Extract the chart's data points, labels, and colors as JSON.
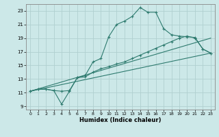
{
  "xlabel": "Humidex (Indice chaleur)",
  "bg_color": "#cce8e8",
  "grid_color": "#b0d0d0",
  "line_color": "#2d7a6e",
  "xlim": [
    -0.5,
    23.5
  ],
  "ylim": [
    8.5,
    24.0
  ],
  "xticks": [
    0,
    1,
    2,
    3,
    4,
    5,
    6,
    7,
    8,
    9,
    10,
    11,
    12,
    13,
    14,
    15,
    16,
    17,
    18,
    19,
    20,
    21,
    22,
    23
  ],
  "yticks": [
    9,
    11,
    13,
    15,
    17,
    19,
    21,
    23
  ],
  "line1_x": [
    0,
    1,
    2,
    3,
    4,
    5,
    6,
    7,
    8,
    9,
    10,
    11,
    12,
    13,
    14,
    15,
    16,
    17,
    18,
    19,
    20,
    21,
    22,
    23
  ],
  "line1_y": [
    11.2,
    11.5,
    11.5,
    11.3,
    11.2,
    11.3,
    13.2,
    13.5,
    15.5,
    16.0,
    19.2,
    21.0,
    21.5,
    22.2,
    23.5,
    22.8,
    22.8,
    20.4,
    19.5,
    19.3,
    19.2,
    19.1,
    17.4,
    16.8
  ],
  "line2_x": [
    0,
    1,
    2,
    3,
    4,
    5,
    6,
    7,
    8,
    9,
    10,
    11,
    12,
    13,
    14,
    15,
    16,
    17,
    18,
    19,
    20,
    21,
    22,
    23
  ],
  "line2_y": [
    11.2,
    11.5,
    11.5,
    11.3,
    9.3,
    11.2,
    13.2,
    13.3,
    14.0,
    14.5,
    14.8,
    15.2,
    15.5,
    16.0,
    16.5,
    17.0,
    17.5,
    18.0,
    18.5,
    19.0,
    19.3,
    19.0,
    17.4,
    16.8
  ],
  "line3_x": [
    0,
    23
  ],
  "line3_y": [
    11.2,
    16.8
  ],
  "line4_x": [
    0,
    23
  ],
  "line4_y": [
    11.2,
    19.0
  ]
}
